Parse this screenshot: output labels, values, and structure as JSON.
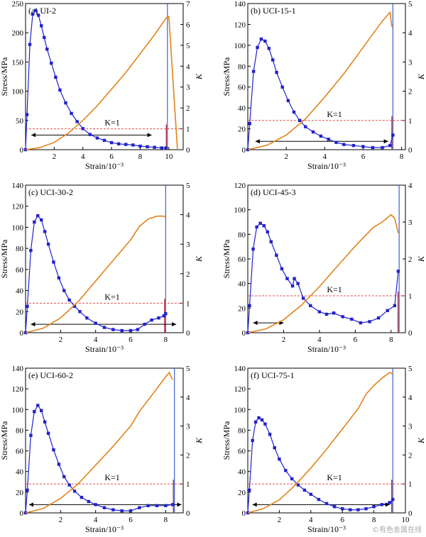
{
  "watermark": "©有色金属在线",
  "colors": {
    "stress": "#2222cc",
    "k_curve": "#e0841b",
    "k_ref": "#e05050",
    "failure_red": "#c0302f",
    "failure_blue": "#4060d0",
    "arrow": "#000000",
    "axis": "#000000"
  },
  "chart_data": [
    {
      "type": "line",
      "panel": "(a)",
      "title": "UI-2",
      "xlabel": "Strain/10⁻³",
      "ylabel": "Stress/MPa",
      "y2label": "K",
      "k_label": "K=1",
      "xlim": [
        0,
        11
      ],
      "xticks": [
        2,
        4,
        6,
        8,
        10
      ],
      "ylim": [
        0,
        250
      ],
      "yticks": [
        0,
        50,
        100,
        150,
        200,
        250
      ],
      "y2lim": [
        0,
        7
      ],
      "y2ticks": [
        0,
        1,
        2,
        3,
        4,
        5,
        6,
        7
      ],
      "k_ref": 1,
      "failure_strain": 9.9,
      "arrow_y": 25,
      "arrow_x": [
        0.4,
        8.8
      ],
      "k_end_drop": [
        10.6,
        0
      ],
      "series": [
        {
          "axis": "left",
          "x": [
            0,
            0.1,
            0.3,
            0.5,
            0.7,
            0.9,
            1.1,
            1.3,
            1.5,
            1.8,
            2.1,
            2.4,
            2.8,
            3.2,
            3.6,
            4.0,
            4.5,
            5.0,
            5.5,
            6.0,
            6.5,
            7.0,
            7.5,
            8.0,
            8.5,
            9.0,
            9.5,
            9.8
          ],
          "y": [
            0,
            60,
            180,
            232,
            238,
            230,
            212,
            192,
            172,
            148,
            124,
            102,
            80,
            62,
            48,
            36,
            26,
            20,
            16,
            12,
            10,
            9,
            8,
            6,
            5,
            4,
            3,
            3
          ]
        },
        {
          "axis": "right",
          "x": [
            0,
            1,
            2,
            3,
            4,
            5,
            6,
            7,
            8,
            9,
            9.8,
            10.0
          ],
          "y": [
            0,
            0.1,
            0.35,
            0.8,
            1.4,
            2.1,
            2.9,
            3.7,
            4.6,
            5.5,
            6.3,
            6.4
          ]
        }
      ]
    },
    {
      "type": "line",
      "panel": "(b)",
      "title": "UCI-15-1",
      "xlabel": "Strain/10⁻³",
      "ylabel": "Stress/MPa",
      "y2label": "K",
      "k_label": "K=1",
      "xlim": [
        0,
        8.2
      ],
      "xticks": [
        2,
        4,
        6,
        8
      ],
      "ylim": [
        0,
        140
      ],
      "yticks": [
        0,
        20,
        40,
        60,
        80,
        100,
        120,
        140
      ],
      "y2lim": [
        0,
        5
      ],
      "y2ticks": [
        0,
        1,
        2,
        3,
        4,
        5
      ],
      "k_ref": 1,
      "failure_strain": 7.55,
      "arrow_y": 8,
      "arrow_x": [
        0.4,
        7.3
      ],
      "series": [
        {
          "axis": "left",
          "x": [
            0,
            0.1,
            0.3,
            0.5,
            0.7,
            0.9,
            1.1,
            1.3,
            1.5,
            1.8,
            2.1,
            2.4,
            2.7,
            3.0,
            3.4,
            3.8,
            4.2,
            4.6,
            5.0,
            5.5,
            6.0,
            6.5,
            7.0,
            7.4,
            7.55
          ],
          "y": [
            0,
            25,
            75,
            98,
            106,
            104,
            97,
            86,
            74,
            60,
            47,
            36,
            28,
            22,
            17,
            13,
            10,
            7,
            5,
            4,
            3,
            2,
            2,
            4,
            14
          ]
        },
        {
          "axis": "right",
          "x": [
            0,
            1,
            2,
            3,
            4,
            5,
            6,
            7,
            7.4,
            7.5
          ],
          "y": [
            0,
            0.15,
            0.5,
            1.05,
            1.8,
            2.6,
            3.5,
            4.4,
            4.7,
            4.2
          ]
        }
      ]
    },
    {
      "type": "line",
      "panel": "(c)",
      "title": "UCI-30-2",
      "xlabel": "Strain/10⁻³",
      "ylabel": "Stress/MPa",
      "y2label": "K",
      "k_label": "K=1",
      "xlim": [
        0,
        9
      ],
      "xticks": [
        2,
        4,
        6,
        8
      ],
      "ylim": [
        0,
        140
      ],
      "yticks": [
        0,
        20,
        40,
        60,
        80,
        100,
        120,
        140
      ],
      "y2lim": [
        0,
        5
      ],
      "y2ticks": [
        0,
        1,
        2,
        3,
        4,
        5
      ],
      "k_ref": 1,
      "failure_strain": 8.0,
      "arrow_y": 8,
      "arrow_x": [
        0.3,
        8.6
      ],
      "series": [
        {
          "axis": "left",
          "x": [
            0,
            0.1,
            0.3,
            0.5,
            0.7,
            0.9,
            1.1,
            1.3,
            1.6,
            1.9,
            2.2,
            2.5,
            2.8,
            3.1,
            3.5,
            4.0,
            4.5,
            5.0,
            5.5,
            6.0,
            6.4,
            6.8,
            7.2,
            7.6,
            7.9,
            8.0
          ],
          "y": [
            0,
            25,
            78,
            105,
            111,
            107,
            96,
            84,
            67,
            52,
            40,
            31,
            25,
            20,
            14,
            9,
            5,
            3,
            2,
            2,
            3,
            8,
            12,
            14,
            16,
            18
          ]
        },
        {
          "axis": "right",
          "x": [
            0,
            1,
            2,
            3,
            4,
            5,
            6,
            6.5,
            7,
            7.5,
            7.9,
            8.0
          ],
          "y": [
            0,
            0.15,
            0.5,
            1.05,
            1.75,
            2.45,
            3.15,
            3.6,
            3.85,
            3.95,
            3.95,
            3.9
          ]
        }
      ]
    },
    {
      "type": "line",
      "panel": "(d)",
      "title": "UCI-45-3",
      "xlabel": "Strain/10⁻³",
      "ylabel": "Stress/MPa",
      "y2label": "K",
      "k_label": "K=1",
      "xlim": [
        0,
        8.8
      ],
      "xticks": [
        2,
        4,
        6,
        8
      ],
      "ylim": [
        0,
        120
      ],
      "yticks": [
        0,
        20,
        40,
        60,
        80,
        100,
        120
      ],
      "y2lim": [
        0,
        4
      ],
      "y2ticks": [
        0,
        1,
        2,
        3,
        4
      ],
      "k_ref": 1,
      "failure_strain": 8.45,
      "arrow_y": 8,
      "arrow_x": [
        0.3,
        2.0
      ],
      "series": [
        {
          "axis": "left",
          "x": [
            0,
            0.1,
            0.3,
            0.5,
            0.7,
            0.9,
            1.1,
            1.3,
            1.6,
            1.9,
            2.2,
            2.5,
            2.6,
            2.8,
            3.1,
            3.5,
            4.0,
            4.4,
            4.8,
            5.3,
            5.8,
            6.3,
            6.8,
            7.3,
            7.8,
            8.2,
            8.4
          ],
          "y": [
            0,
            22,
            68,
            86,
            89,
            87,
            82,
            74,
            63,
            52,
            44,
            38,
            44,
            40,
            28,
            22,
            17,
            15,
            16,
            13,
            11,
            8,
            9,
            12,
            18,
            22,
            50
          ]
        },
        {
          "axis": "right",
          "x": [
            0,
            1,
            2,
            3,
            4,
            5,
            6,
            7,
            7.5,
            8.0,
            8.2,
            8.4
          ],
          "y": [
            0,
            0.1,
            0.35,
            0.75,
            1.25,
            1.8,
            2.35,
            2.85,
            3.0,
            3.2,
            3.1,
            2.7
          ]
        }
      ]
    },
    {
      "type": "line",
      "panel": "(e)",
      "title": "UCI-60-2",
      "xlabel": "Strain/10⁻³",
      "ylabel": "Stress/MPa",
      "y2label": "K",
      "k_label": "K=1",
      "xlim": [
        0,
        9
      ],
      "xticks": [
        2,
        4,
        6,
        8
      ],
      "ylim": [
        0,
        140
      ],
      "yticks": [
        0,
        20,
        40,
        60,
        80,
        100,
        120,
        140
      ],
      "y2lim": [
        0,
        5
      ],
      "y2ticks": [
        0,
        1,
        2,
        3,
        4,
        5
      ],
      "k_ref": 1,
      "failure_strain": 8.5,
      "arrow_y": 8,
      "arrow_x": [
        0.2,
        8.9
      ],
      "series": [
        {
          "axis": "left",
          "x": [
            0,
            0.1,
            0.3,
            0.5,
            0.7,
            0.9,
            1.1,
            1.3,
            1.6,
            1.9,
            2.2,
            2.5,
            2.8,
            3.2,
            3.6,
            4.0,
            4.5,
            5.0,
            5.5,
            6.0,
            6.5,
            7.0,
            7.5,
            8.0,
            8.4
          ],
          "y": [
            0,
            22,
            75,
            98,
            104,
            99,
            88,
            77,
            61,
            47,
            35,
            27,
            21,
            15,
            11,
            8,
            5,
            3,
            2,
            2,
            5,
            7,
            7,
            7,
            8
          ]
        },
        {
          "axis": "right",
          "x": [
            0,
            1,
            2,
            3,
            4,
            5,
            6,
            6.5,
            7,
            7.5,
            8.0,
            8.2,
            8.4
          ],
          "y": [
            0,
            0.15,
            0.5,
            1.0,
            1.65,
            2.3,
            3.0,
            3.5,
            3.9,
            4.3,
            4.7,
            4.85,
            4.6
          ]
        }
      ]
    },
    {
      "type": "line",
      "panel": "(f)",
      "title": "UCI-75-1",
      "xlabel": "Strain/10⁻³",
      "ylabel": "Stress/MPa",
      "y2label": "K",
      "k_label": "K=1",
      "xlim": [
        0,
        10
      ],
      "xticks": [
        2,
        4,
        6,
        8,
        10
      ],
      "ylim": [
        0,
        140
      ],
      "yticks": [
        0,
        20,
        40,
        60,
        80,
        100,
        120,
        140
      ],
      "y2lim": [
        0,
        5
      ],
      "y2ticks": [
        0,
        1,
        2,
        3,
        4,
        5
      ],
      "k_ref": 1,
      "failure_strain": 9.2,
      "arrow_y": 8,
      "arrow_x": [
        0.3,
        9.0
      ],
      "series": [
        {
          "axis": "left",
          "x": [
            0,
            0.1,
            0.3,
            0.5,
            0.7,
            0.9,
            1.1,
            1.4,
            1.7,
            2.0,
            2.4,
            2.8,
            3.2,
            3.6,
            4.0,
            4.5,
            5.0,
            5.5,
            6.0,
            6.5,
            7.0,
            7.5,
            8.0,
            8.5,
            9.0,
            9.2
          ],
          "y": [
            0,
            22,
            70,
            88,
            92,
            90,
            86,
            76,
            63,
            52,
            41,
            33,
            27,
            22,
            18,
            13,
            9,
            6,
            4,
            3,
            3,
            4,
            6,
            8,
            10,
            13
          ]
        },
        {
          "axis": "right",
          "x": [
            0,
            1,
            2,
            3,
            4,
            5,
            6,
            7,
            7.5,
            8.0,
            8.5,
            9.0,
            9.2
          ],
          "y": [
            0,
            0.15,
            0.45,
            0.95,
            1.55,
            2.2,
            2.9,
            3.6,
            4.1,
            4.4,
            4.65,
            4.85,
            4.8
          ]
        }
      ]
    }
  ]
}
